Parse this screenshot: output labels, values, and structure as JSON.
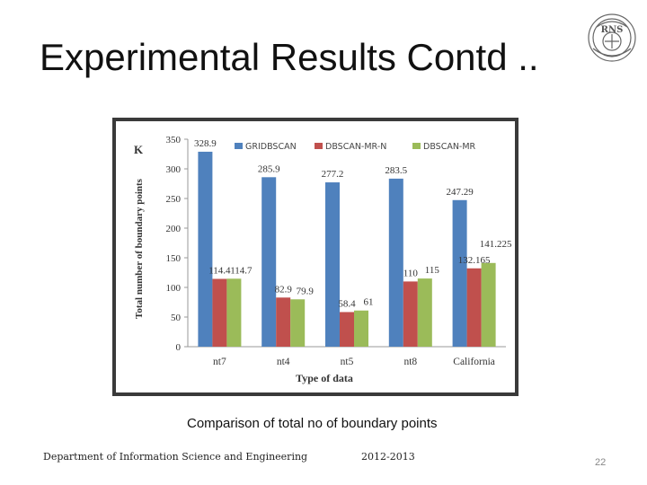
{
  "slide": {
    "title": "Experimental Results Contd ..",
    "caption": "Comparison of total no of boundary points",
    "footer_department": "Department of Information Science and Engineering",
    "footer_year": "2012-2013",
    "page_number": "22",
    "logo_text": "RNS"
  },
  "chart_data": {
    "type": "bar",
    "categories": [
      "nt7",
      "nt4",
      "nt5",
      "nt8",
      "California"
    ],
    "series": [
      {
        "name": "GRIDBSCAN",
        "color": "#4f81bd",
        "values": [
          328.9,
          285.9,
          277.2,
          283.5,
          247.29
        ],
        "labels": [
          "328.9",
          "285.9",
          "277.2",
          "283.5",
          "247.29"
        ]
      },
      {
        "name": "DBSCAN-MR-N",
        "color": "#c0504d",
        "values": [
          114.4,
          82.9,
          58.4,
          110,
          132.165
        ],
        "labels": [
          "114.4",
          "82.9",
          "58.4",
          "110",
          "132.165"
        ]
      },
      {
        "name": "DBSCAN-MR",
        "color": "#9bbb59",
        "values": [
          114.7,
          79.9,
          61,
          115,
          141.225
        ],
        "labels": [
          "114.7",
          "79.9",
          "61",
          "115",
          "141.225"
        ]
      }
    ],
    "xlabel": "Type of data",
    "ylabel": "Total number of boundary points",
    "yunit": "K",
    "ylim": [
      0,
      350
    ],
    "yticks": [
      "0",
      "50",
      "100",
      "150",
      "200",
      "250",
      "300",
      "350"
    ],
    "grid": false,
    "legend": "top"
  }
}
